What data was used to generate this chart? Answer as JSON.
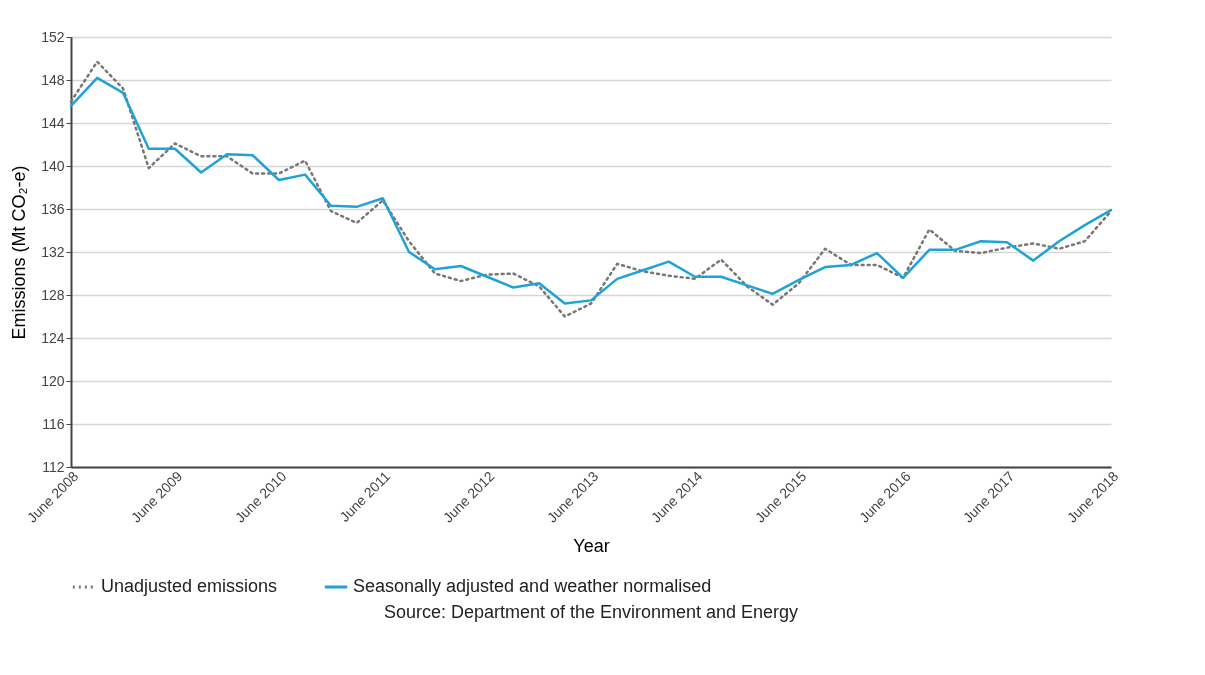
{
  "chart_data": {
    "type": "line",
    "xlabel": "Year",
    "ylabel": "Emissions (Mt CO₂-e)",
    "x": [
      "2008-06",
      "2008-09",
      "2008-12",
      "2009-03",
      "2009-06",
      "2009-09",
      "2009-12",
      "2010-03",
      "2010-06",
      "2010-09",
      "2010-12",
      "2011-03",
      "2011-06",
      "2011-09",
      "2011-12",
      "2012-03",
      "2012-06",
      "2012-09",
      "2012-12",
      "2013-03",
      "2013-06",
      "2013-09",
      "2013-12",
      "2014-03",
      "2014-06",
      "2014-09",
      "2014-12",
      "2015-03",
      "2015-06",
      "2015-09",
      "2015-12",
      "2016-03",
      "2016-06",
      "2016-09",
      "2016-12",
      "2017-03",
      "2017-06",
      "2017-09",
      "2017-12",
      "2018-03",
      "2018-06"
    ],
    "series": [
      {
        "name": "Unadjusted emissions",
        "color": "#777777",
        "line_style": "dotted",
        "values": [
          146.0,
          149.7,
          147.2,
          139.8,
          142.1,
          140.9,
          140.9,
          139.3,
          139.3,
          140.5,
          135.8,
          134.7,
          136.8,
          133.0,
          130.0,
          129.3,
          129.9,
          130.0,
          128.8,
          126.0,
          127.2,
          130.9,
          130.2,
          129.8,
          129.5,
          131.3,
          128.8,
          127.1,
          129.1,
          132.3,
          130.8,
          130.8,
          129.6,
          134.1,
          132.1,
          131.9,
          132.4,
          132.8,
          132.3,
          133.0,
          135.8
        ]
      },
      {
        "name": "Seasonally adjusted and weather normalised",
        "color": "#1fa3d6",
        "line_style": "solid",
        "values": [
          145.6,
          148.2,
          146.8,
          141.6,
          141.6,
          139.4,
          141.1,
          141.0,
          138.7,
          139.2,
          136.3,
          136.2,
          137.0,
          132.0,
          130.4,
          130.7,
          129.7,
          128.7,
          129.1,
          127.2,
          127.5,
          129.5,
          130.3,
          131.1,
          129.7,
          129.7,
          128.9,
          128.1,
          129.4,
          130.6,
          130.8,
          131.9,
          129.6,
          132.2,
          132.2,
          133.0,
          132.9,
          131.2,
          133.0,
          134.5,
          135.9
        ]
      }
    ],
    "xlim": [
      "2008-06",
      "2018-06"
    ],
    "xticks": [
      {
        "value": "2008-06",
        "label": "June 2008"
      },
      {
        "value": "2009-06",
        "label": "June 2009"
      },
      {
        "value": "2010-06",
        "label": "June 2010"
      },
      {
        "value": "2011-06",
        "label": "June 2011"
      },
      {
        "value": "2012-06",
        "label": "June 2012"
      },
      {
        "value": "2013-06",
        "label": "June 2013"
      },
      {
        "value": "2014-06",
        "label": "June 2014"
      },
      {
        "value": "2015-06",
        "label": "June 2015"
      },
      {
        "value": "2016-06",
        "label": "June 2016"
      },
      {
        "value": "2017-06",
        "label": "June 2017"
      },
      {
        "value": "2018-06",
        "label": "June 2018"
      }
    ],
    "ylim": [
      112,
      152
    ],
    "yticks": [
      112,
      116,
      120,
      124,
      128,
      132,
      136,
      140,
      144,
      148,
      152
    ],
    "grid": "y",
    "legend": "bottom",
    "annotations": [
      "Source: Department of the Environment and Energy"
    ]
  }
}
